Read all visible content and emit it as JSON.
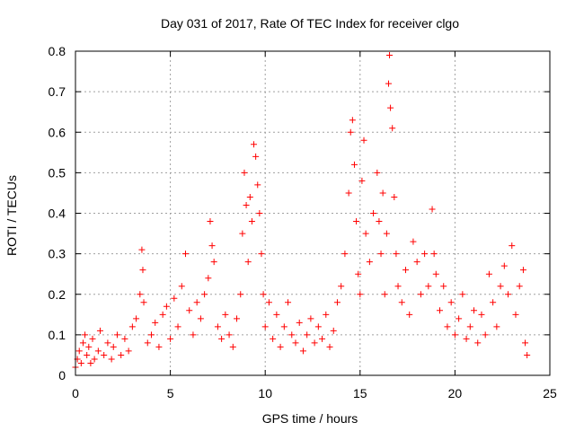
{
  "chart_data": {
    "type": "scatter",
    "title": "Day 031 of 2017, Rate Of TEC Index for receiver clgo",
    "xlabel": "GPS time / hours",
    "ylabel": "ROTI / TECUs",
    "xlim": [
      0,
      25
    ],
    "ylim": [
      0,
      0.8
    ],
    "xticks": [
      0,
      5,
      10,
      15,
      20,
      25
    ],
    "xtick_labels": [
      "0",
      "5",
      "10",
      "15",
      "20",
      "25"
    ],
    "yticks": [
      0,
      0.1,
      0.2,
      0.3,
      0.4,
      0.5,
      0.6,
      0.7,
      0.8
    ],
    "ytick_labels": [
      "0",
      "0.1",
      "0.2",
      "0.3",
      "0.4",
      "0.5",
      "0.6",
      "0.7",
      "0.8"
    ],
    "grid": true,
    "marker": "+",
    "color": "#ff0000",
    "series": [
      {
        "name": "ROTI",
        "points": [
          [
            0.0,
            0.02
          ],
          [
            0.1,
            0.04
          ],
          [
            0.2,
            0.06
          ],
          [
            0.3,
            0.03
          ],
          [
            0.4,
            0.08
          ],
          [
            0.5,
            0.1
          ],
          [
            0.6,
            0.05
          ],
          [
            0.7,
            0.07
          ],
          [
            0.8,
            0.03
          ],
          [
            0.9,
            0.09
          ],
          [
            1.0,
            0.04
          ],
          [
            1.2,
            0.06
          ],
          [
            1.3,
            0.11
          ],
          [
            1.5,
            0.05
          ],
          [
            1.7,
            0.08
          ],
          [
            1.9,
            0.04
          ],
          [
            2.0,
            0.07
          ],
          [
            2.2,
            0.1
          ],
          [
            2.4,
            0.05
          ],
          [
            2.6,
            0.09
          ],
          [
            2.8,
            0.06
          ],
          [
            3.0,
            0.12
          ],
          [
            3.2,
            0.14
          ],
          [
            3.4,
            0.2
          ],
          [
            3.5,
            0.31
          ],
          [
            3.55,
            0.26
          ],
          [
            3.6,
            0.18
          ],
          [
            3.8,
            0.08
          ],
          [
            4.0,
            0.1
          ],
          [
            4.2,
            0.13
          ],
          [
            4.4,
            0.07
          ],
          [
            4.6,
            0.15
          ],
          [
            4.8,
            0.17
          ],
          [
            5.0,
            0.09
          ],
          [
            5.2,
            0.19
          ],
          [
            5.4,
            0.12
          ],
          [
            5.6,
            0.22
          ],
          [
            5.8,
            0.3
          ],
          [
            6.0,
            0.16
          ],
          [
            6.2,
            0.1
          ],
          [
            6.4,
            0.18
          ],
          [
            6.6,
            0.14
          ],
          [
            6.8,
            0.2
          ],
          [
            7.0,
            0.24
          ],
          [
            7.1,
            0.38
          ],
          [
            7.2,
            0.32
          ],
          [
            7.3,
            0.28
          ],
          [
            7.5,
            0.12
          ],
          [
            7.7,
            0.09
          ],
          [
            7.9,
            0.15
          ],
          [
            8.1,
            0.1
          ],
          [
            8.3,
            0.07
          ],
          [
            8.5,
            0.14
          ],
          [
            8.7,
            0.2
          ],
          [
            8.8,
            0.35
          ],
          [
            8.9,
            0.5
          ],
          [
            9.0,
            0.42
          ],
          [
            9.1,
            0.28
          ],
          [
            9.2,
            0.44
          ],
          [
            9.3,
            0.38
          ],
          [
            9.4,
            0.57
          ],
          [
            9.5,
            0.54
          ],
          [
            9.6,
            0.47
          ],
          [
            9.7,
            0.4
          ],
          [
            9.8,
            0.3
          ],
          [
            9.9,
            0.2
          ],
          [
            10.0,
            0.12
          ],
          [
            10.2,
            0.18
          ],
          [
            10.4,
            0.09
          ],
          [
            10.6,
            0.15
          ],
          [
            10.8,
            0.07
          ],
          [
            11.0,
            0.12
          ],
          [
            11.2,
            0.18
          ],
          [
            11.4,
            0.1
          ],
          [
            11.6,
            0.08
          ],
          [
            11.8,
            0.13
          ],
          [
            12.0,
            0.06
          ],
          [
            12.2,
            0.1
          ],
          [
            12.4,
            0.14
          ],
          [
            12.6,
            0.08
          ],
          [
            12.8,
            0.12
          ],
          [
            13.0,
            0.09
          ],
          [
            13.2,
            0.15
          ],
          [
            13.4,
            0.07
          ],
          [
            13.6,
            0.11
          ],
          [
            13.8,
            0.18
          ],
          [
            14.0,
            0.22
          ],
          [
            14.2,
            0.3
          ],
          [
            14.4,
            0.45
          ],
          [
            14.5,
            0.6
          ],
          [
            14.6,
            0.63
          ],
          [
            14.7,
            0.52
          ],
          [
            14.8,
            0.38
          ],
          [
            14.9,
            0.25
          ],
          [
            15.0,
            0.2
          ],
          [
            15.1,
            0.48
          ],
          [
            15.2,
            0.58
          ],
          [
            15.3,
            0.35
          ],
          [
            15.5,
            0.28
          ],
          [
            15.7,
            0.4
          ],
          [
            15.9,
            0.5
          ],
          [
            16.0,
            0.38
          ],
          [
            16.1,
            0.3
          ],
          [
            16.2,
            0.45
          ],
          [
            16.3,
            0.2
          ],
          [
            16.4,
            0.35
          ],
          [
            16.5,
            0.72
          ],
          [
            16.55,
            0.79
          ],
          [
            16.6,
            0.66
          ],
          [
            16.7,
            0.61
          ],
          [
            16.8,
            0.44
          ],
          [
            16.9,
            0.3
          ],
          [
            17.0,
            0.22
          ],
          [
            17.2,
            0.18
          ],
          [
            17.4,
            0.26
          ],
          [
            17.6,
            0.15
          ],
          [
            17.8,
            0.33
          ],
          [
            18.0,
            0.28
          ],
          [
            18.2,
            0.2
          ],
          [
            18.4,
            0.3
          ],
          [
            18.6,
            0.22
          ],
          [
            18.8,
            0.41
          ],
          [
            18.9,
            0.3
          ],
          [
            19.0,
            0.25
          ],
          [
            19.2,
            0.16
          ],
          [
            19.4,
            0.22
          ],
          [
            19.6,
            0.12
          ],
          [
            19.8,
            0.18
          ],
          [
            20.0,
            0.1
          ],
          [
            20.2,
            0.14
          ],
          [
            20.4,
            0.2
          ],
          [
            20.6,
            0.09
          ],
          [
            20.8,
            0.12
          ],
          [
            21.0,
            0.16
          ],
          [
            21.2,
            0.08
          ],
          [
            21.4,
            0.15
          ],
          [
            21.6,
            0.1
          ],
          [
            21.8,
            0.25
          ],
          [
            22.0,
            0.18
          ],
          [
            22.2,
            0.12
          ],
          [
            22.4,
            0.22
          ],
          [
            22.6,
            0.27
          ],
          [
            22.8,
            0.2
          ],
          [
            23.0,
            0.32
          ],
          [
            23.2,
            0.15
          ],
          [
            23.4,
            0.22
          ],
          [
            23.6,
            0.26
          ],
          [
            23.7,
            0.08
          ],
          [
            23.8,
            0.05
          ]
        ]
      }
    ]
  }
}
